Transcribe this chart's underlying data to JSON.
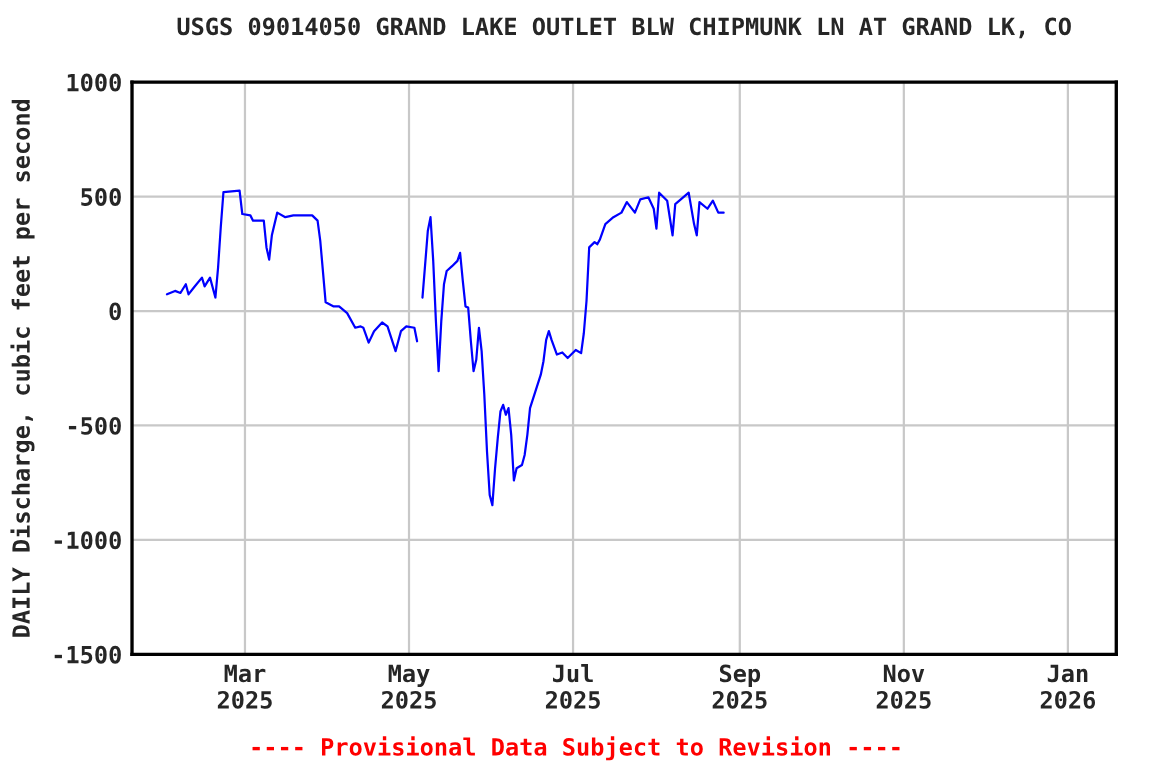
{
  "chart_data": {
    "type": "line",
    "title": "USGS 09014050 GRAND LAKE OUTLET BLW CHIPMUNK LN AT GRAND LK, CO",
    "ylabel": "DAILY Discharge, cubic feet per second",
    "annotations": [
      "---- Provisional Data Subject to Revision ----"
    ],
    "x": [
      "2025-01-31",
      "2025-02-03",
      "2025-02-05",
      "2025-02-07",
      "2025-02-08",
      "2025-02-10",
      "2025-02-13",
      "2025-02-14",
      "2025-02-16",
      "2025-02-18",
      "2025-02-19",
      "2025-02-20",
      "2025-02-21",
      "2025-02-27",
      "2025-02-28",
      "2025-03-03",
      "2025-03-04",
      "2025-03-08",
      "2025-03-09",
      "2025-03-10",
      "2025-03-11",
      "2025-03-13",
      "2025-03-16",
      "2025-03-19",
      "2025-03-26",
      "2025-03-28",
      "2025-03-29",
      "2025-03-31",
      "2025-04-03",
      "2025-04-05",
      "2025-04-08",
      "2025-04-11",
      "2025-04-13",
      "2025-04-14",
      "2025-04-16",
      "2025-04-18",
      "2025-04-21",
      "2025-04-23",
      "2025-04-26",
      "2025-04-28",
      "2025-04-30",
      "2025-05-03",
      "2025-05-04",
      "2025-05-05",
      "2025-05-06",
      "2025-05-07",
      "2025-05-08",
      "2025-05-09",
      "2025-05-10",
      "2025-05-11",
      "2025-05-12",
      "2025-05-13",
      "2025-05-14",
      "2025-05-15",
      "2025-05-17",
      "2025-05-19",
      "2025-05-20",
      "2025-05-21",
      "2025-05-22",
      "2025-05-23",
      "2025-05-24",
      "2025-05-25",
      "2025-05-26",
      "2025-05-27",
      "2025-05-28",
      "2025-05-29",
      "2025-05-30",
      "2025-05-31",
      "2025-06-01",
      "2025-06-02",
      "2025-06-03",
      "2025-06-04",
      "2025-06-05",
      "2025-06-06",
      "2025-06-07",
      "2025-06-08",
      "2025-06-09",
      "2025-06-10",
      "2025-06-12",
      "2025-06-13",
      "2025-06-14",
      "2025-06-15",
      "2025-06-17",
      "2025-06-19",
      "2025-06-20",
      "2025-06-21",
      "2025-06-22",
      "2025-06-23",
      "2025-06-25",
      "2025-06-27",
      "2025-06-29",
      "2025-07-02",
      "2025-07-04",
      "2025-07-05",
      "2025-07-06",
      "2025-07-07",
      "2025-07-09",
      "2025-07-10",
      "2025-07-11",
      "2025-07-13",
      "2025-07-16",
      "2025-07-19",
      "2025-07-21",
      "2025-07-24",
      "2025-07-26",
      "2025-07-29",
      "2025-07-31",
      "2025-08-01",
      "2025-08-02",
      "2025-08-05",
      "2025-08-07",
      "2025-08-08",
      "2025-08-13",
      "2025-08-15",
      "2025-08-16",
      "2025-08-17",
      "2025-08-20",
      "2025-08-22",
      "2025-08-24",
      "2025-08-26"
    ],
    "series": [
      {
        "color": "#0000ff",
        "values": [
          73,
          88,
          79,
          117,
          73,
          103,
          146,
          108,
          146,
          59,
          190,
          366,
          520,
          526,
          424,
          418,
          395,
          395,
          278,
          225,
          331,
          430,
          410,
          418,
          418,
          395,
          307,
          38,
          20,
          20,
          -9,
          -73,
          -67,
          -73,
          -138,
          -88,
          -50,
          -67,
          -175,
          -88,
          -67,
          -73,
          -132,
          null,
          59,
          204,
          351,
          410,
          219,
          -44,
          -263,
          -44,
          117,
          175,
          196,
          219,
          254,
          132,
          20,
          15,
          -132,
          -263,
          -213,
          -73,
          -175,
          -366,
          -614,
          -804,
          -848,
          -687,
          -555,
          -439,
          -410,
          -453,
          -424,
          -541,
          -740,
          -687,
          -673,
          -629,
          -541,
          -424,
          -351,
          -278,
          -219,
          -126,
          -88,
          -126,
          -190,
          -181,
          -205,
          -170,
          -184,
          -97,
          44,
          278,
          301,
          292,
          313,
          380,
          410,
          430,
          476,
          430,
          488,
          497,
          447,
          360,
          517,
          482,
          331,
          467,
          517,
          380,
          331,
          476,
          447,
          482,
          430,
          430
        ]
      }
    ],
    "xlim": [
      "2025-01-18",
      "2026-01-19"
    ],
    "xticks": [
      {
        "value": "2025-03-01",
        "label": "Mar\n2025"
      },
      {
        "value": "2025-05-01",
        "label": "May\n2025"
      },
      {
        "value": "2025-07-01",
        "label": "Jul\n2025"
      },
      {
        "value": "2025-09-01",
        "label": "Sep\n2025"
      },
      {
        "value": "2025-11-01",
        "label": "Nov\n2025"
      },
      {
        "value": "2026-01-01",
        "label": "Jan\n2026"
      }
    ],
    "ylim": [
      -1500,
      1000
    ],
    "yticks": [
      1000,
      500,
      0,
      -500,
      -1000,
      -1500
    ],
    "grid": true,
    "marker": "none",
    "line_style": "solid"
  }
}
